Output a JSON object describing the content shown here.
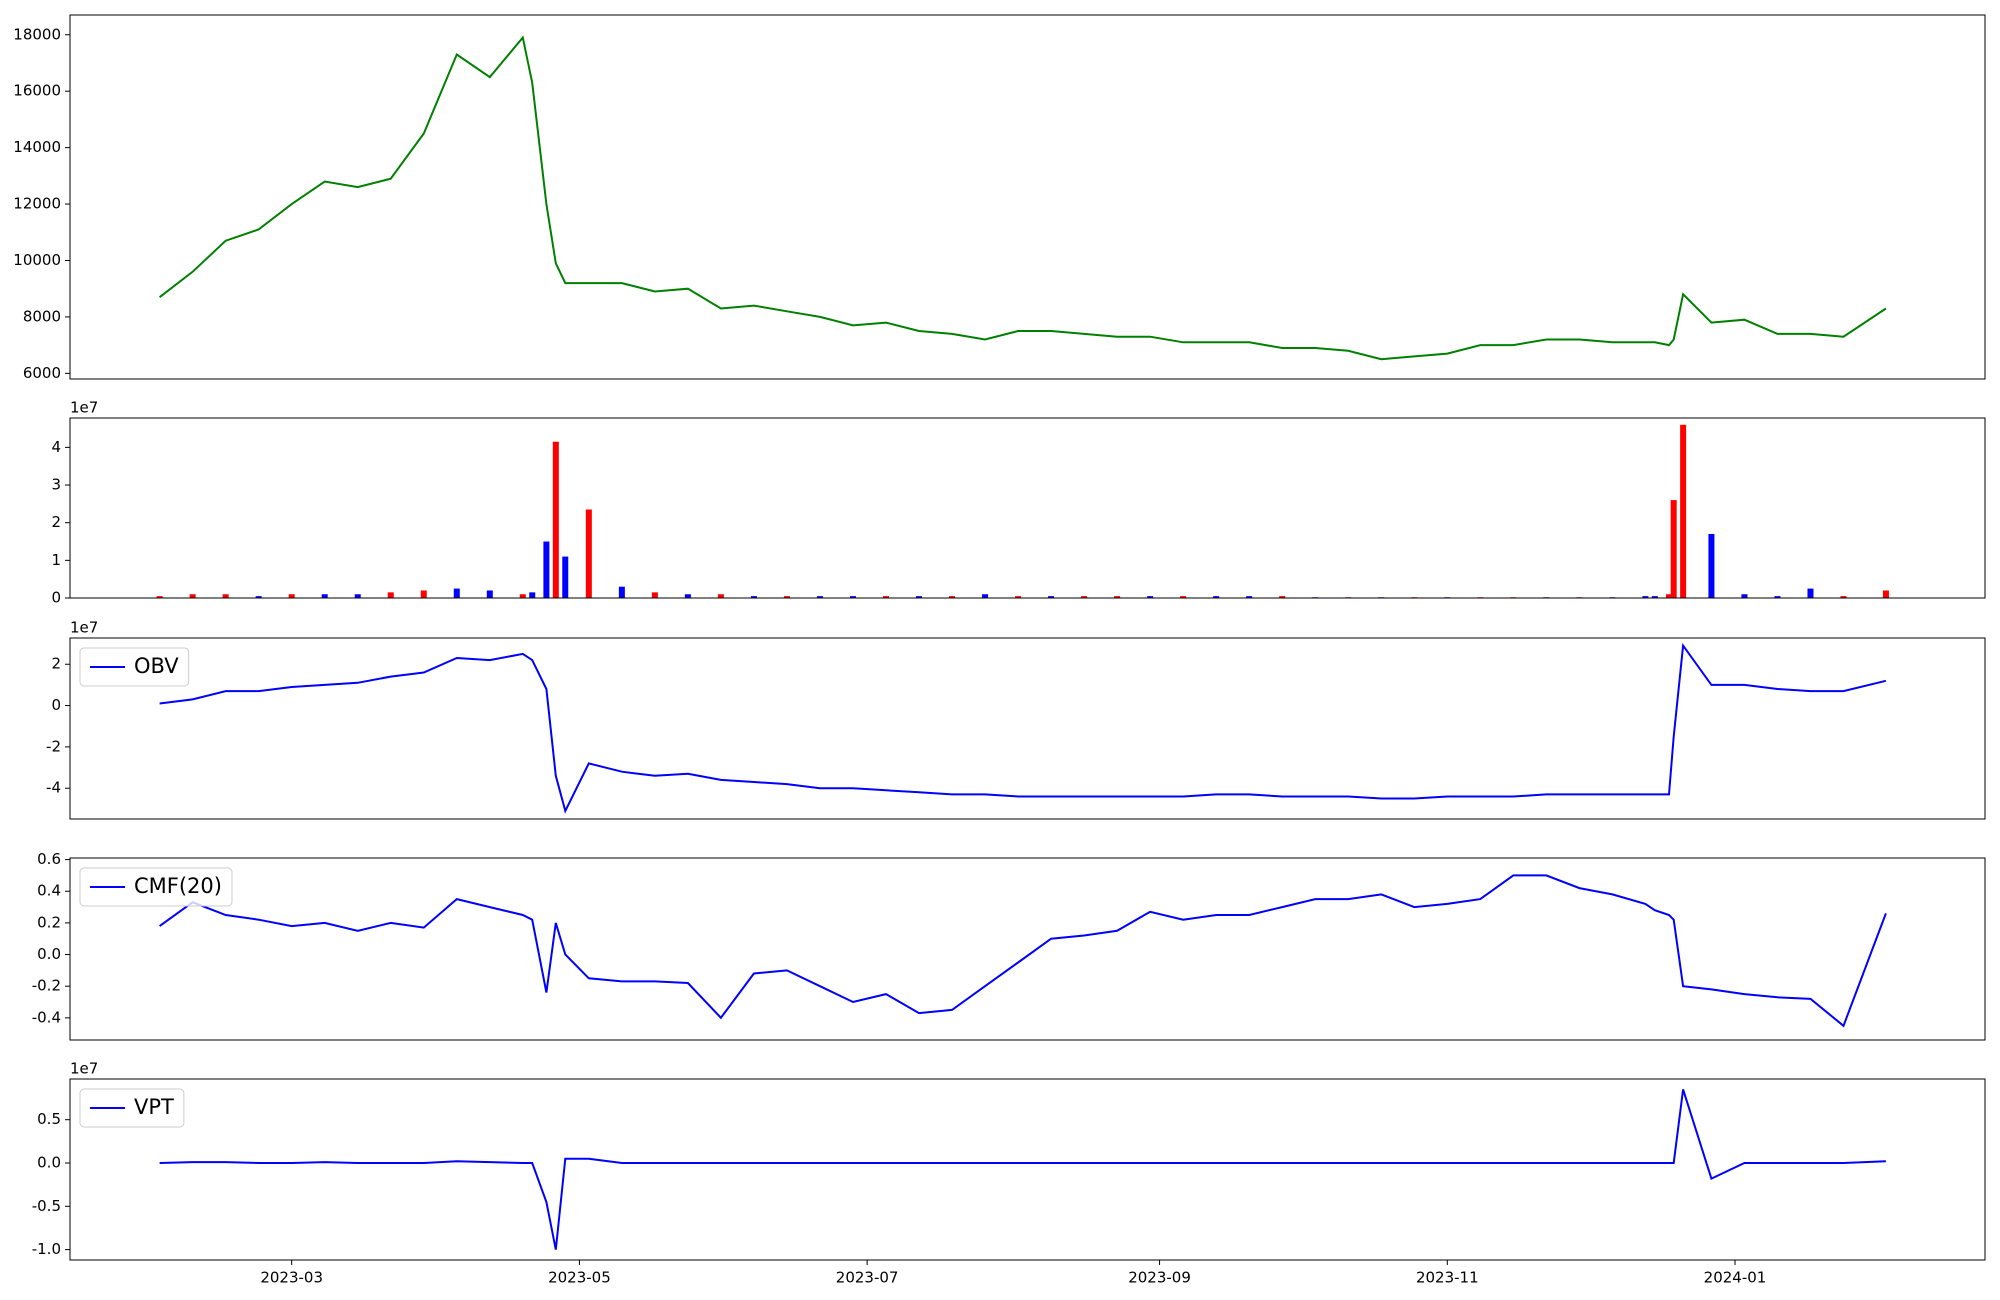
{
  "chart_data": [
    {
      "type": "line",
      "color": "#008000",
      "x": [
        "2023-02-01",
        "2023-02-08",
        "2023-02-15",
        "2023-02-22",
        "2023-03-01",
        "2023-03-08",
        "2023-03-15",
        "2023-03-22",
        "2023-03-29",
        "2023-04-05",
        "2023-04-12",
        "2023-04-19",
        "2023-04-21",
        "2023-04-24",
        "2023-04-26",
        "2023-04-28",
        "2023-05-03",
        "2023-05-10",
        "2023-05-17",
        "2023-05-24",
        "2023-05-31",
        "2023-06-07",
        "2023-06-14",
        "2023-06-21",
        "2023-06-28",
        "2023-07-05",
        "2023-07-12",
        "2023-07-19",
        "2023-07-26",
        "2023-08-02",
        "2023-08-09",
        "2023-08-16",
        "2023-08-23",
        "2023-08-30",
        "2023-09-06",
        "2023-09-13",
        "2023-09-20",
        "2023-09-27",
        "2023-10-04",
        "2023-10-11",
        "2023-10-18",
        "2023-10-25",
        "2023-11-01",
        "2023-11-08",
        "2023-11-15",
        "2023-11-22",
        "2023-11-29",
        "2023-12-06",
        "2023-12-13",
        "2023-12-15",
        "2023-12-18",
        "2023-12-19",
        "2023-12-21",
        "2023-12-27",
        "2024-01-03",
        "2024-01-10",
        "2024-01-17",
        "2024-01-24",
        "2024-02-02"
      ],
      "values": [
        8700,
        9600,
        10700,
        11100,
        12000,
        12800,
        12600,
        12900,
        14500,
        17300,
        16500,
        17900,
        16300,
        12000,
        9900,
        9200,
        9200,
        9200,
        8900,
        9000,
        8300,
        8400,
        8200,
        8000,
        7700,
        7800,
        7500,
        7400,
        7200,
        7500,
        7500,
        7400,
        7300,
        7300,
        7100,
        7100,
        7100,
        6900,
        6900,
        6800,
        6500,
        6600,
        6700,
        7000,
        7000,
        7200,
        7200,
        7100,
        7100,
        7100,
        7000,
        7200,
        8800,
        7800,
        7900,
        7400,
        7400,
        7300,
        8300
      ],
      "xlim": [
        "2023-01-13",
        "2024-02-23"
      ],
      "ylim": [
        5800,
        18700
      ],
      "yticks": [
        6000,
        8000,
        10000,
        12000,
        14000,
        16000,
        18000
      ]
    },
    {
      "type": "bar",
      "offset_text": "1e7",
      "x": [
        "2023-02-01",
        "2023-02-08",
        "2023-02-15",
        "2023-02-22",
        "2023-03-01",
        "2023-03-08",
        "2023-03-15",
        "2023-03-22",
        "2023-03-29",
        "2023-04-05",
        "2023-04-12",
        "2023-04-19",
        "2023-04-21",
        "2023-04-24",
        "2023-04-26",
        "2023-04-28",
        "2023-05-03",
        "2023-05-10",
        "2023-05-17",
        "2023-05-24",
        "2023-05-31",
        "2023-06-07",
        "2023-06-14",
        "2023-06-21",
        "2023-06-28",
        "2023-07-05",
        "2023-07-12",
        "2023-07-19",
        "2023-07-26",
        "2023-08-02",
        "2023-08-09",
        "2023-08-16",
        "2023-08-23",
        "2023-08-30",
        "2023-09-06",
        "2023-09-13",
        "2023-09-20",
        "2023-09-27",
        "2023-10-04",
        "2023-10-11",
        "2023-10-18",
        "2023-10-25",
        "2023-11-01",
        "2023-11-08",
        "2023-11-15",
        "2023-11-22",
        "2023-11-29",
        "2023-12-06",
        "2023-12-13",
        "2023-12-15",
        "2023-12-18",
        "2023-12-19",
        "2023-12-21",
        "2023-12-27",
        "2024-01-03",
        "2024-01-10",
        "2024-01-17",
        "2024-01-24",
        "2024-02-02"
      ],
      "values": [
        0.05,
        0.1,
        0.1,
        0.05,
        0.1,
        0.1,
        0.1,
        0.15,
        0.2,
        0.25,
        0.2,
        0.1,
        0.15,
        1.5,
        4.15,
        1.1,
        2.35,
        0.3,
        0.15,
        0.1,
        0.1,
        0.05,
        0.05,
        0.05,
        0.05,
        0.05,
        0.05,
        0.05,
        0.1,
        0.05,
        0.05,
        0.05,
        0.05,
        0.05,
        0.05,
        0.05,
        0.05,
        0.05,
        0.02,
        0.02,
        0.02,
        0.02,
        0.02,
        0.02,
        0.02,
        0.02,
        0.02,
        0.02,
        0.05,
        0.05,
        0.1,
        2.6,
        4.6,
        1.7,
        0.1,
        0.05,
        0.25,
        0.05,
        0.2
      ],
      "colors": [
        "#ff0000",
        "#ff0000",
        "#ff0000",
        "#0000ff",
        "#ff0000",
        "#0000ff",
        "#0000ff",
        "#ff0000",
        "#ff0000",
        "#0000ff",
        "#0000ff",
        "#ff0000",
        "#0000ff",
        "#0000ff",
        "#ff0000",
        "#0000ff",
        "#ff0000",
        "#0000ff",
        "#ff0000",
        "#0000ff",
        "#ff0000",
        "#0000ff",
        "#ff0000",
        "#0000ff",
        "#0000ff",
        "#ff0000",
        "#0000ff",
        "#ff0000",
        "#0000ff",
        "#ff0000",
        "#0000ff",
        "#ff0000",
        "#ff0000",
        "#0000ff",
        "#ff0000",
        "#0000ff",
        "#0000ff",
        "#ff0000",
        "#0000ff",
        "#ff0000",
        "#0000ff",
        "#ff0000",
        "#0000ff",
        "#ff0000",
        "#ff0000",
        "#0000ff",
        "#ff0000",
        "#0000ff",
        "#0000ff",
        "#0000ff",
        "#ff0000",
        "#ff0000",
        "#ff0000",
        "#0000ff",
        "#0000ff",
        "#0000ff",
        "#0000ff",
        "#ff0000",
        "#ff0000"
      ],
      "xlim": [
        "2023-01-13",
        "2024-02-23"
      ],
      "ylim": [
        0,
        4.78
      ],
      "yticks": [
        0,
        1,
        2,
        3,
        4
      ]
    },
    {
      "type": "line",
      "offset_text": "1e7",
      "legend": "upper left",
      "x": [
        "2023-02-01",
        "2023-02-08",
        "2023-02-15",
        "2023-02-22",
        "2023-03-01",
        "2023-03-08",
        "2023-03-15",
        "2023-03-22",
        "2023-03-29",
        "2023-04-05",
        "2023-04-12",
        "2023-04-19",
        "2023-04-21",
        "2023-04-24",
        "2023-04-26",
        "2023-04-28",
        "2023-05-03",
        "2023-05-10",
        "2023-05-17",
        "2023-05-24",
        "2023-05-31",
        "2023-06-07",
        "2023-06-14",
        "2023-06-21",
        "2023-06-28",
        "2023-07-05",
        "2023-07-12",
        "2023-07-19",
        "2023-07-26",
        "2023-08-02",
        "2023-08-09",
        "2023-08-16",
        "2023-08-23",
        "2023-08-30",
        "2023-09-06",
        "2023-09-13",
        "2023-09-20",
        "2023-09-27",
        "2023-10-04",
        "2023-10-11",
        "2023-10-18",
        "2023-10-25",
        "2023-11-01",
        "2023-11-08",
        "2023-11-15",
        "2023-11-22",
        "2023-11-29",
        "2023-12-06",
        "2023-12-13",
        "2023-12-15",
        "2023-12-18",
        "2023-12-19",
        "2023-12-21",
        "2023-12-27",
        "2024-01-03",
        "2024-01-10",
        "2024-01-17",
        "2024-01-24",
        "2024-02-02"
      ],
      "series": [
        {
          "name": "OBV",
          "color": "#0000ff",
          "values": [
            0.1,
            0.3,
            0.7,
            0.7,
            0.9,
            1.0,
            1.1,
            1.4,
            1.6,
            2.3,
            2.2,
            2.5,
            2.2,
            0.8,
            -3.4,
            -5.1,
            -2.8,
            -3.2,
            -3.4,
            -3.3,
            -3.6,
            -3.7,
            -3.8,
            -4.0,
            -4.0,
            -4.1,
            -4.2,
            -4.3,
            -4.3,
            -4.4,
            -4.4,
            -4.4,
            -4.4,
            -4.4,
            -4.4,
            -4.3,
            -4.3,
            -4.4,
            -4.4,
            -4.4,
            -4.5,
            -4.5,
            -4.4,
            -4.4,
            -4.4,
            -4.3,
            -4.3,
            -4.3,
            -4.3,
            -4.3,
            -4.3,
            -1.5,
            2.9,
            1.0,
            1.0,
            0.8,
            0.7,
            0.7,
            1.2
          ]
        }
      ],
      "xlim": [
        "2023-01-13",
        "2024-02-23"
      ],
      "ylim": [
        -5.49,
        3.27
      ],
      "yticks": [
        -4,
        -2,
        0,
        2
      ]
    },
    {
      "type": "line",
      "legend": "upper left",
      "x": [
        "2023-02-01",
        "2023-02-08",
        "2023-02-15",
        "2023-02-22",
        "2023-03-01",
        "2023-03-08",
        "2023-03-15",
        "2023-03-22",
        "2023-03-29",
        "2023-04-05",
        "2023-04-12",
        "2023-04-19",
        "2023-04-21",
        "2023-04-24",
        "2023-04-26",
        "2023-04-28",
        "2023-05-03",
        "2023-05-10",
        "2023-05-17",
        "2023-05-24",
        "2023-05-31",
        "2023-06-07",
        "2023-06-14",
        "2023-06-21",
        "2023-06-28",
        "2023-07-05",
        "2023-07-12",
        "2023-07-19",
        "2023-07-26",
        "2023-08-02",
        "2023-08-09",
        "2023-08-16",
        "2023-08-23",
        "2023-08-30",
        "2023-09-06",
        "2023-09-13",
        "2023-09-20",
        "2023-09-27",
        "2023-10-04",
        "2023-10-11",
        "2023-10-18",
        "2023-10-25",
        "2023-11-01",
        "2023-11-08",
        "2023-11-15",
        "2023-11-22",
        "2023-11-29",
        "2023-12-06",
        "2023-12-13",
        "2023-12-15",
        "2023-12-18",
        "2023-12-19",
        "2023-12-21",
        "2023-12-27",
        "2024-01-03",
        "2024-01-10",
        "2024-01-17",
        "2024-01-24",
        "2024-02-02"
      ],
      "series": [
        {
          "name": "CMF(20)",
          "color": "#0000ff",
          "values": [
            0.18,
            0.33,
            0.25,
            0.22,
            0.18,
            0.2,
            0.15,
            0.2,
            0.17,
            0.35,
            0.3,
            0.25,
            0.22,
            -0.24,
            0.2,
            0.0,
            -0.15,
            -0.17,
            -0.17,
            -0.18,
            -0.4,
            -0.12,
            -0.1,
            -0.2,
            -0.3,
            -0.25,
            -0.37,
            -0.35,
            -0.2,
            -0.05,
            0.1,
            0.12,
            0.15,
            0.27,
            0.22,
            0.25,
            0.25,
            0.3,
            0.35,
            0.35,
            0.38,
            0.3,
            0.32,
            0.35,
            0.5,
            0.5,
            0.42,
            0.38,
            0.32,
            0.28,
            0.25,
            0.22,
            -0.2,
            -0.22,
            -0.25,
            -0.27,
            -0.28,
            -0.45,
            0.26
          ]
        }
      ],
      "xlim": [
        "2023-01-13",
        "2024-02-23"
      ],
      "ylim": [
        -0.54,
        0.61
      ],
      "yticks": [
        -0.4,
        -0.2,
        {
          "value": 0,
          "label": "0.0"
        },
        0.2,
        0.4,
        0.6
      ]
    },
    {
      "type": "line",
      "offset_text": "1e7",
      "legend": "upper left",
      "x": [
        "2023-02-01",
        "2023-02-08",
        "2023-02-15",
        "2023-02-22",
        "2023-03-01",
        "2023-03-08",
        "2023-03-15",
        "2023-03-22",
        "2023-03-29",
        "2023-04-05",
        "2023-04-12",
        "2023-04-19",
        "2023-04-21",
        "2023-04-24",
        "2023-04-26",
        "2023-04-28",
        "2023-05-03",
        "2023-05-10",
        "2023-05-17",
        "2023-05-24",
        "2023-05-31",
        "2023-06-07",
        "2023-06-14",
        "2023-06-21",
        "2023-06-28",
        "2023-07-05",
        "2023-07-12",
        "2023-07-19",
        "2023-07-26",
        "2023-08-02",
        "2023-08-09",
        "2023-08-16",
        "2023-08-23",
        "2023-08-30",
        "2023-09-06",
        "2023-09-13",
        "2023-09-20",
        "2023-09-27",
        "2023-10-04",
        "2023-10-11",
        "2023-10-18",
        "2023-10-25",
        "2023-11-01",
        "2023-11-08",
        "2023-11-15",
        "2023-11-22",
        "2023-11-29",
        "2023-12-06",
        "2023-12-13",
        "2023-12-15",
        "2023-12-18",
        "2023-12-19",
        "2023-12-21",
        "2023-12-27",
        "2024-01-03",
        "2024-01-10",
        "2024-01-17",
        "2024-01-24",
        "2024-02-02"
      ],
      "series": [
        {
          "name": "VPT",
          "color": "#0000ff",
          "values": [
            0.0,
            0.01,
            0.01,
            0.0,
            0.0,
            0.01,
            0.0,
            0.0,
            0.0,
            0.02,
            0.01,
            0.0,
            0.0,
            -0.45,
            -1.0,
            0.05,
            0.05,
            0.0,
            0.0,
            0.0,
            0.0,
            0.0,
            0.0,
            0.0,
            0.0,
            0.0,
            0.0,
            0.0,
            0.0,
            0.0,
            0.0,
            0.0,
            0.0,
            0.0,
            0.0,
            0.0,
            0.0,
            0.0,
            0.0,
            0.0,
            0.0,
            0.0,
            0.0,
            0.0,
            0.0,
            0.0,
            0.0,
            0.0,
            0.0,
            0.0,
            0.0,
            0.0,
            0.85,
            -0.18,
            0.0,
            0.0,
            0.0,
            0.0,
            0.02
          ]
        }
      ],
      "xlim": [
        "2023-01-13",
        "2024-02-23"
      ],
      "ylim": [
        -1.12,
        0.97
      ],
      "yticks": [
        {
          "value": -1,
          "label": "-1.0"
        },
        -0.5,
        {
          "value": 0,
          "label": "0.0"
        },
        0.5
      ],
      "xticks": [
        {
          "value": "2023-03-01",
          "label": "2023-03"
        },
        {
          "value": "2023-05-01",
          "label": "2023-05"
        },
        {
          "value": "2023-07-01",
          "label": "2023-07"
        },
        {
          "value": "2023-09-01",
          "label": "2023-09"
        },
        {
          "value": "2023-11-01",
          "label": "2023-11"
        },
        {
          "value": "2024-01-01",
          "label": "2024-01"
        }
      ]
    }
  ]
}
